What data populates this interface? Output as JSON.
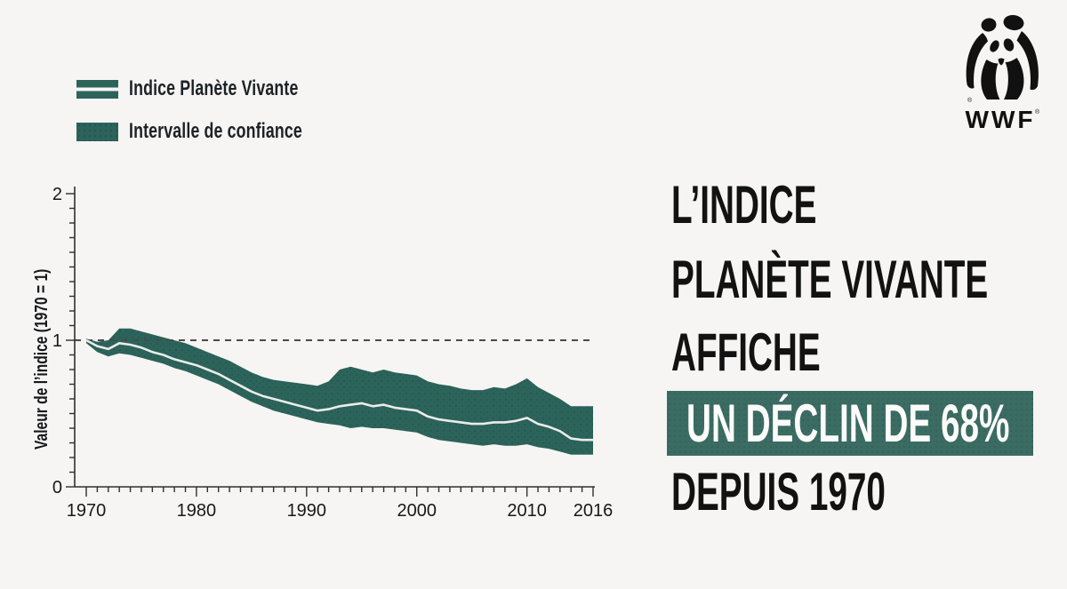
{
  "page": {
    "background": "#f6f5f3"
  },
  "legend": {
    "items": [
      {
        "label": "Indice Planète Vivante",
        "type": "line",
        "color": "#2c635a"
      },
      {
        "label": "Intervalle de confiance",
        "type": "area",
        "color": "#2c635a"
      }
    ]
  },
  "headline": {
    "lines": [
      "L’INDICE",
      "PLANÈTE VIVANTE",
      "AFFICHE"
    ],
    "highlight": "UN DÉCLIN DE 68%",
    "highlight_bg": "#3b6c63",
    "suffix": "DEPUIS 1970"
  },
  "logo": {
    "brand": "WWF",
    "registered": "®"
  },
  "chart_data": {
    "type": "area",
    "title": "",
    "xlabel": "",
    "ylabel": "Valeur de l’indice (1970 = 1)",
    "xlim": [
      1970,
      2016
    ],
    "ylim": [
      0,
      2
    ],
    "x_ticks_major": [
      1970,
      1980,
      1990,
      2000,
      2010,
      2016
    ],
    "x_tick_labels": [
      "1970",
      "1980",
      "1990",
      "2000",
      "2010",
      "2016"
    ],
    "y_ticks_major": [
      0,
      1,
      2
    ],
    "y_tick_labels": [
      "0",
      "1",
      "2"
    ],
    "x_minor_step": 1,
    "y_minor_step": 0.1,
    "reference_line_y": 1,
    "grid": false,
    "legend_position": "top-left",
    "band_color": "#2c635a",
    "line_color": "#e9ede9",
    "reference_color": "#4a4a4a",
    "years": [
      1970,
      1971,
      1972,
      1973,
      1974,
      1975,
      1976,
      1977,
      1978,
      1979,
      1980,
      1981,
      1982,
      1983,
      1984,
      1985,
      1986,
      1987,
      1988,
      1989,
      1990,
      1991,
      1992,
      1993,
      1994,
      1995,
      1996,
      1997,
      1998,
      1999,
      2000,
      2001,
      2002,
      2003,
      2004,
      2005,
      2006,
      2007,
      2008,
      2009,
      2010,
      2011,
      2012,
      2013,
      2014,
      2015,
      2016
    ],
    "series": [
      {
        "name": "Indice Planète Vivante",
        "values": [
          1.0,
          0.96,
          0.94,
          0.98,
          0.97,
          0.95,
          0.92,
          0.9,
          0.87,
          0.85,
          0.83,
          0.8,
          0.77,
          0.73,
          0.69,
          0.65,
          0.62,
          0.6,
          0.58,
          0.56,
          0.54,
          0.52,
          0.53,
          0.55,
          0.56,
          0.57,
          0.55,
          0.56,
          0.54,
          0.53,
          0.52,
          0.48,
          0.46,
          0.45,
          0.44,
          0.43,
          0.43,
          0.44,
          0.44,
          0.45,
          0.47,
          0.43,
          0.41,
          0.38,
          0.33,
          0.32,
          0.32
        ]
      },
      {
        "name": "Intervalle de confiance (borne supérieure)",
        "values": [
          1.01,
          0.99,
          1.0,
          1.08,
          1.08,
          1.06,
          1.04,
          1.02,
          1.0,
          0.98,
          0.95,
          0.92,
          0.89,
          0.86,
          0.82,
          0.78,
          0.75,
          0.73,
          0.72,
          0.71,
          0.7,
          0.69,
          0.72,
          0.8,
          0.82,
          0.8,
          0.78,
          0.8,
          0.78,
          0.77,
          0.76,
          0.72,
          0.7,
          0.69,
          0.67,
          0.66,
          0.66,
          0.68,
          0.67,
          0.7,
          0.74,
          0.68,
          0.64,
          0.6,
          0.55,
          0.55,
          0.55
        ]
      },
      {
        "name": "Intervalle de confiance (borne inférieure)",
        "values": [
          0.98,
          0.92,
          0.89,
          0.91,
          0.9,
          0.88,
          0.86,
          0.84,
          0.81,
          0.79,
          0.76,
          0.73,
          0.7,
          0.66,
          0.62,
          0.58,
          0.55,
          0.52,
          0.5,
          0.48,
          0.46,
          0.44,
          0.43,
          0.42,
          0.4,
          0.41,
          0.4,
          0.4,
          0.39,
          0.38,
          0.37,
          0.34,
          0.32,
          0.31,
          0.3,
          0.29,
          0.28,
          0.29,
          0.28,
          0.28,
          0.29,
          0.27,
          0.26,
          0.24,
          0.22,
          0.22,
          0.22
        ]
      }
    ]
  }
}
